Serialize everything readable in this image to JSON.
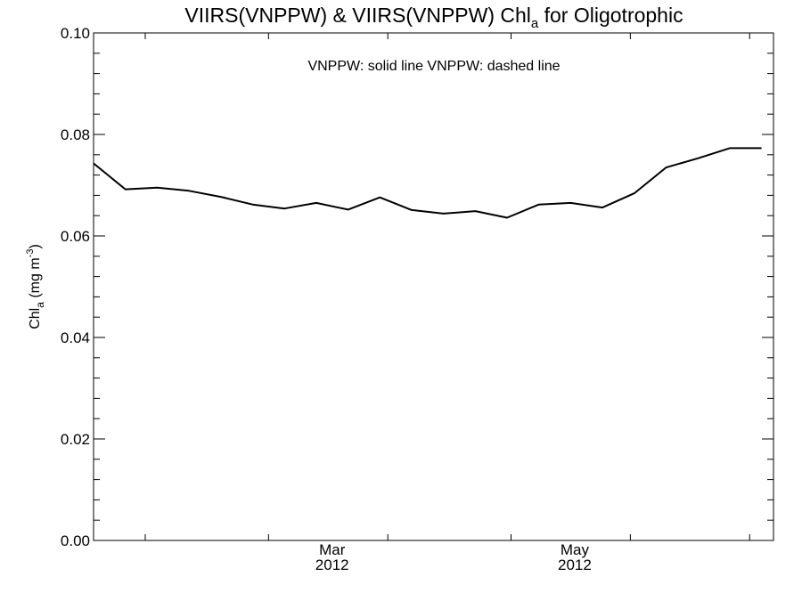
{
  "chart_data": {
    "type": "line",
    "title": {
      "prefix": "VIIRS(VNPPW) & VIIRS(VNPPW)  Chl",
      "subscript": "a",
      "suffix": " for Oligotrophic"
    },
    "legend_note": "VNPPW: solid line   VNPPW: dashed line",
    "ylabel": {
      "prefix": "Chl",
      "subscript": "a",
      "middle": " (mg m",
      "superscript": "-3",
      "suffix": ")"
    },
    "ylim": [
      0.0,
      0.1
    ],
    "yticks": [
      0.0,
      0.02,
      0.04,
      0.06,
      0.08,
      0.1
    ],
    "ytick_labels": [
      "0.00",
      "0.02",
      "0.04",
      "0.06",
      "0.08",
      "0.10"
    ],
    "xlim": [
      "2012-01-01",
      "2012-06-20"
    ],
    "xtick_dates": [
      "2012-01-14",
      "2012-02-14",
      "2012-03-15",
      "2012-04-15",
      "2012-05-15",
      "2012-06-14"
    ],
    "xtick_labels": [
      {
        "date": "2012-03-01",
        "month": "Mar",
        "year": "2012"
      },
      {
        "date": "2012-05-01",
        "month": "May",
        "year": "2012"
      }
    ],
    "grid": false,
    "series": [
      {
        "style": "solid",
        "color": "#000000",
        "x": [
          "2012-01-01",
          "2012-01-09",
          "2012-01-17",
          "2012-01-25",
          "2012-02-02",
          "2012-02-10",
          "2012-02-18",
          "2012-02-26",
          "2012-03-05",
          "2012-03-13",
          "2012-03-21",
          "2012-03-29",
          "2012-04-06",
          "2012-04-14",
          "2012-04-22",
          "2012-04-30",
          "2012-05-08",
          "2012-05-16",
          "2012-05-24",
          "2012-06-01",
          "2012-06-09",
          "2012-06-17"
        ],
        "values": [
          0.0743,
          0.0692,
          0.0695,
          0.0689,
          0.0677,
          0.0662,
          0.0654,
          0.0665,
          0.0652,
          0.0676,
          0.0651,
          0.0644,
          0.0649,
          0.0636,
          0.0662,
          0.0665,
          0.0656,
          0.0684,
          0.0735,
          0.0753,
          0.0773,
          0.0773
        ]
      }
    ]
  }
}
